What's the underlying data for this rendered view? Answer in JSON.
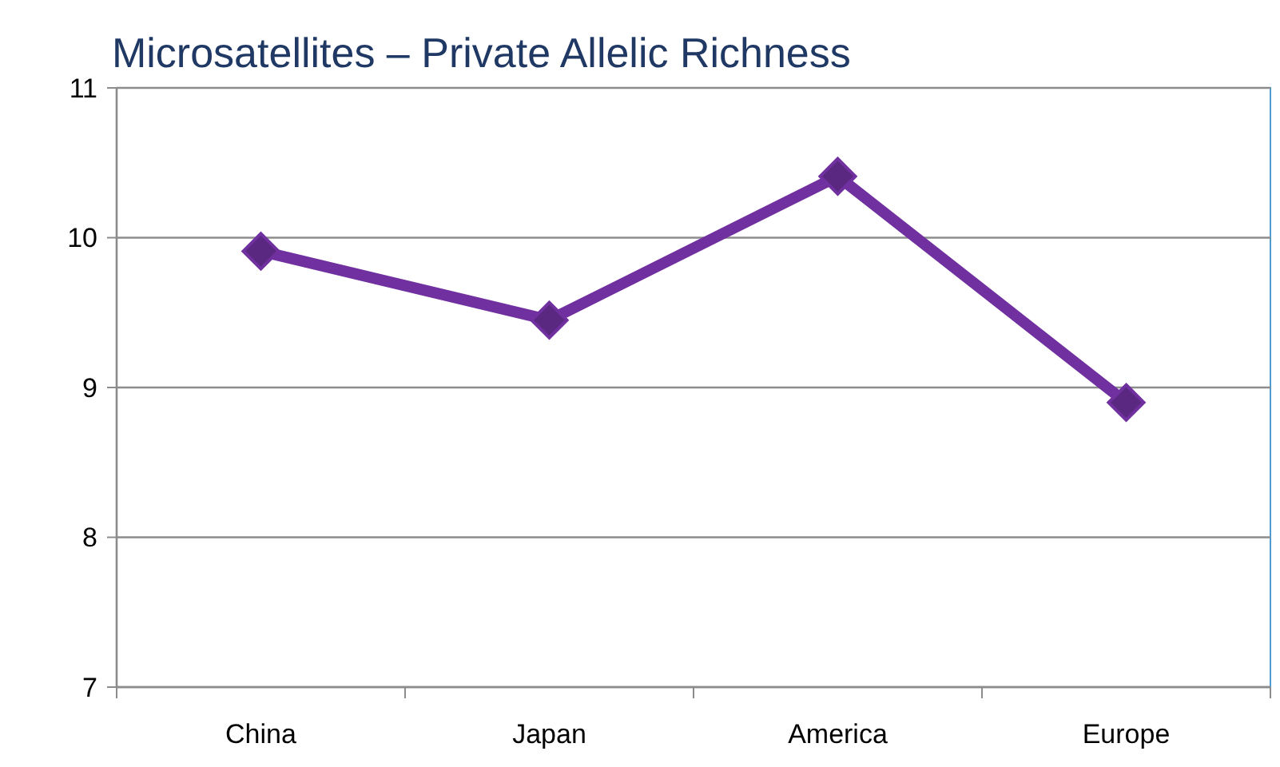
{
  "chart_data": {
    "type": "line",
    "title": "Microsatellites –  Private Allelic Richness",
    "categories": [
      "China",
      "Japan",
      "America",
      "Europe"
    ],
    "series": [
      {
        "color": "#7030a0",
        "values": [
          9.91,
          9.45,
          10.41,
          8.9
        ]
      }
    ],
    "ylim": [
      7,
      11
    ],
    "yticks": [
      7,
      8,
      9,
      10,
      11
    ],
    "grid": "y",
    "marker": "diamond",
    "line_style": "solid"
  }
}
